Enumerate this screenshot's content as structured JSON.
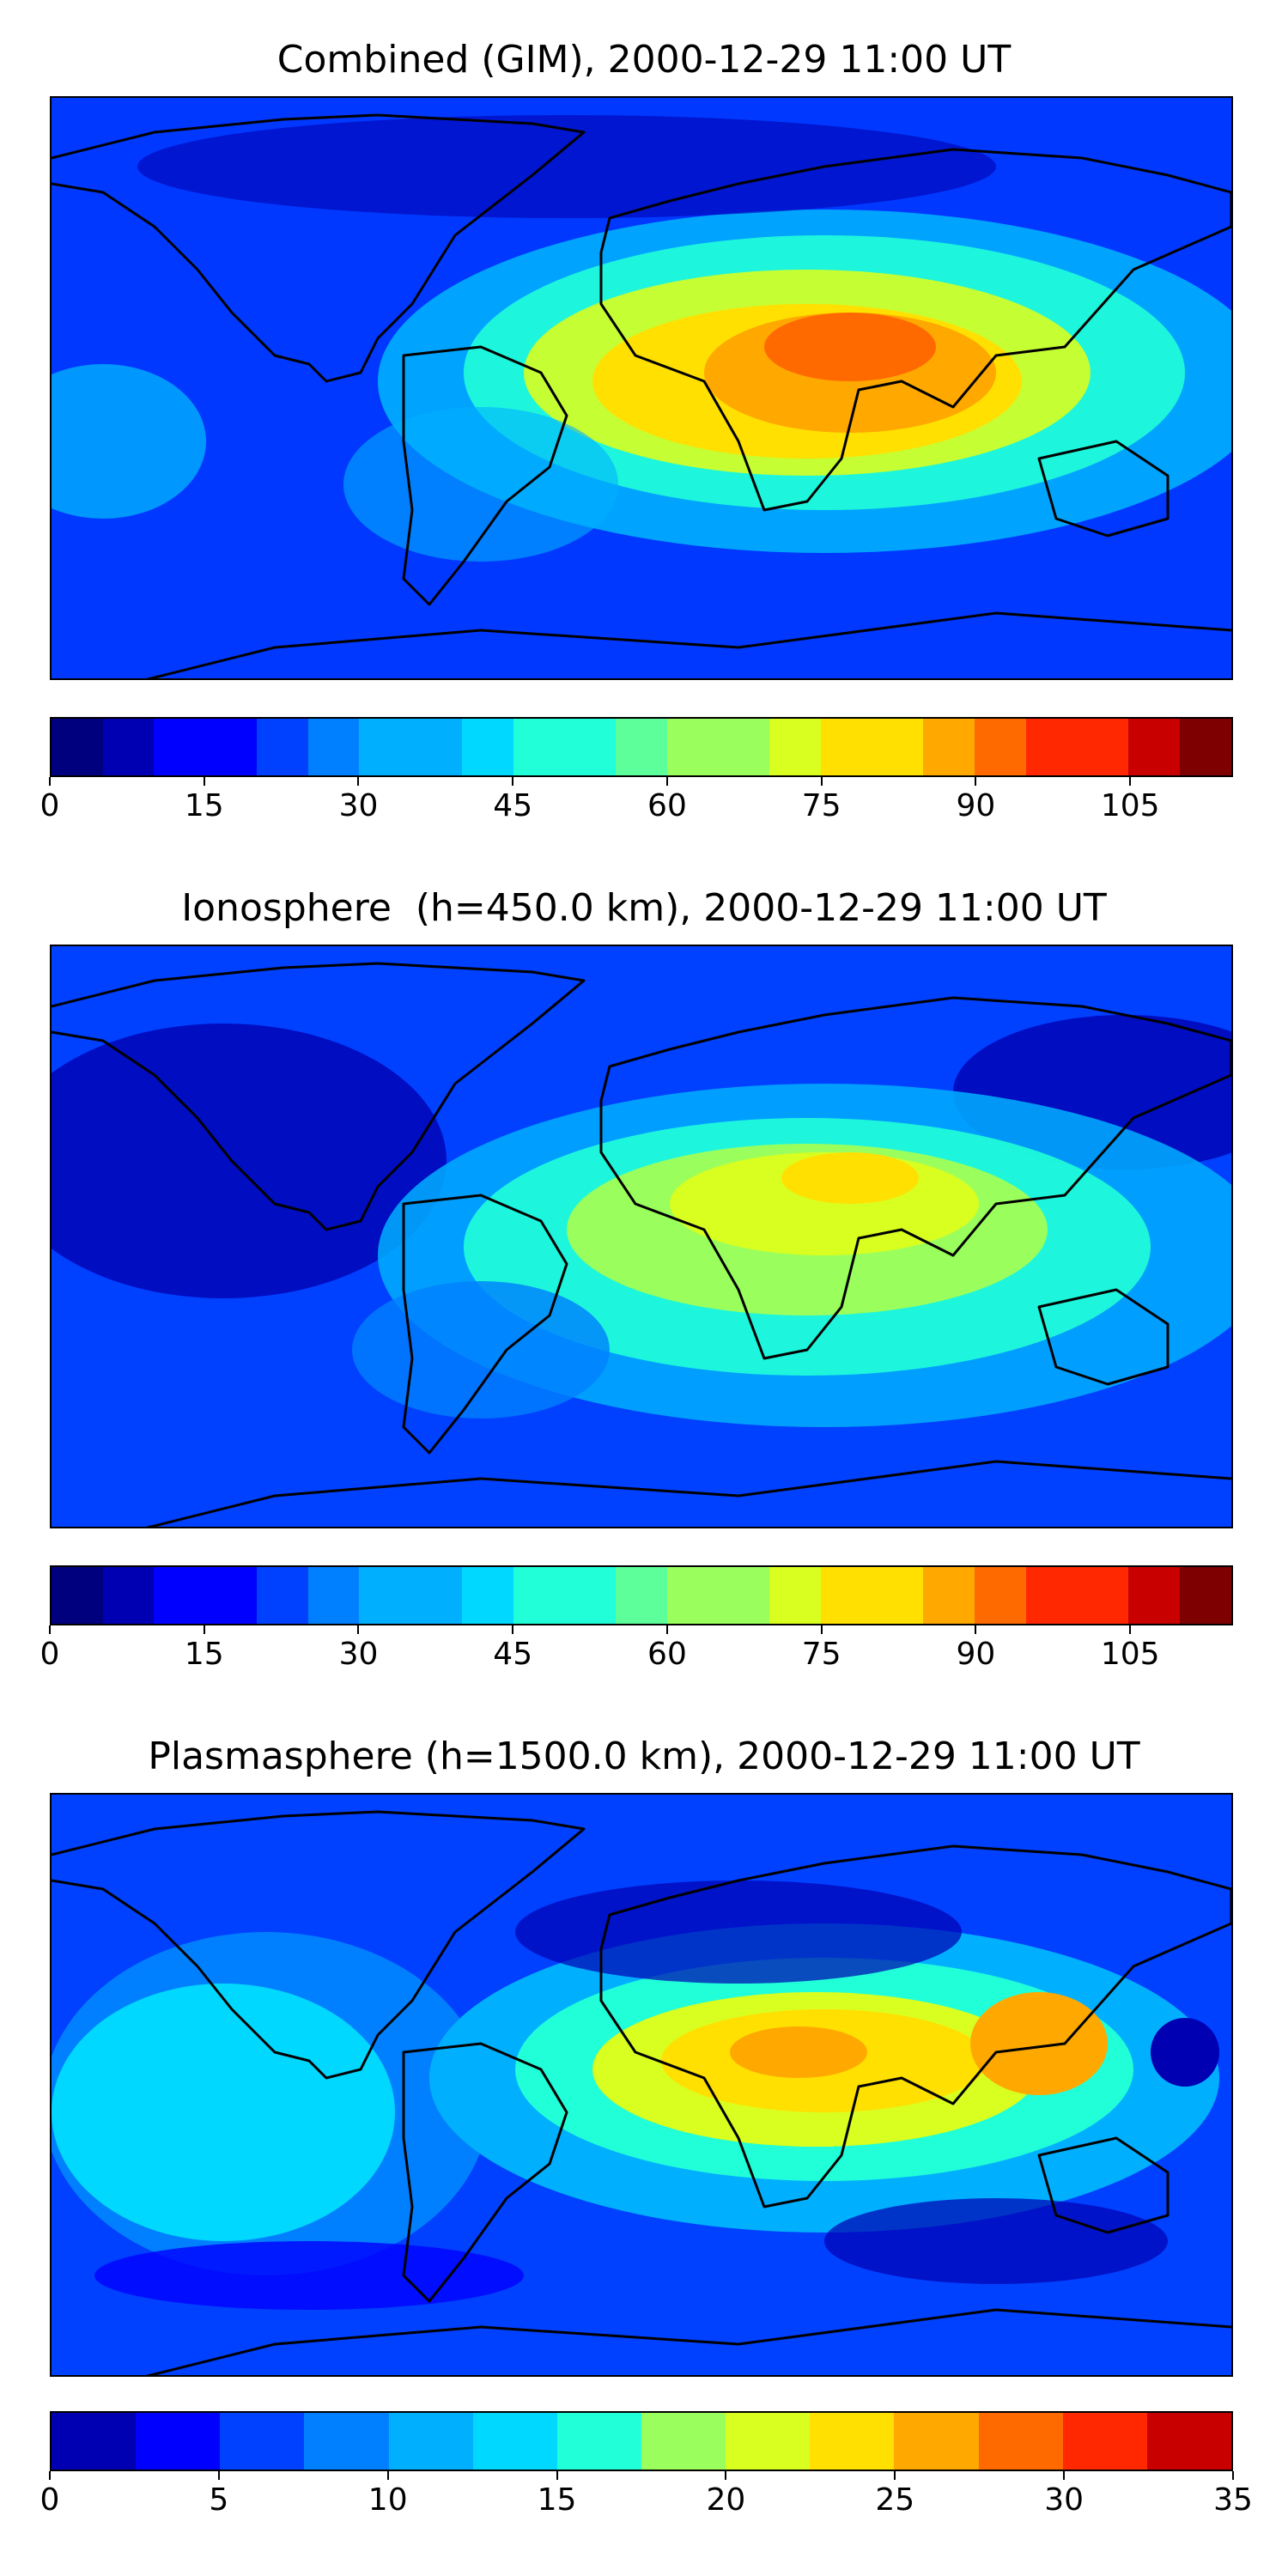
{
  "panels": [
    {
      "title": "Combined (GIM), 2000-12-29 11:00 UT",
      "colorbar": {
        "ticks": [
          "0",
          "15",
          "30",
          "45",
          "60",
          "75",
          "90",
          "105"
        ],
        "tick_values": [
          0,
          15,
          30,
          45,
          60,
          75,
          90,
          105
        ],
        "range": [
          0,
          115
        ],
        "levels": 23
      }
    },
    {
      "title": "Ionosphere  (h=450.0 km), 2000-12-29 11:00 UT",
      "colorbar": {
        "ticks": [
          "0",
          "15",
          "30",
          "45",
          "60",
          "75",
          "90",
          "105"
        ],
        "tick_values": [
          0,
          15,
          30,
          45,
          60,
          75,
          90,
          105
        ],
        "range": [
          0,
          115
        ],
        "levels": 23
      }
    },
    {
      "title": "Plasmasphere (h=1500.0 km), 2000-12-29 11:00 UT",
      "colorbar": {
        "ticks": [
          "0",
          "5",
          "10",
          "15",
          "20",
          "25",
          "30",
          "35"
        ],
        "tick_values": [
          0,
          5,
          10,
          15,
          20,
          25,
          30,
          35
        ],
        "range": [
          0,
          35
        ],
        "levels": 14
      }
    }
  ],
  "colormap": "jet",
  "jet_colors": [
    "#00007f",
    "#0000b2",
    "#0000ff",
    "#0040ff",
    "#0080ff",
    "#00b0ff",
    "#00d8ff",
    "#20ffd8",
    "#5cff9a",
    "#9aff5c",
    "#d8ff20",
    "#ffe000",
    "#ffa800",
    "#ff6a00",
    "#ff2800",
    "#c80000",
    "#7f0000"
  ],
  "coastline_color": "#000000"
}
